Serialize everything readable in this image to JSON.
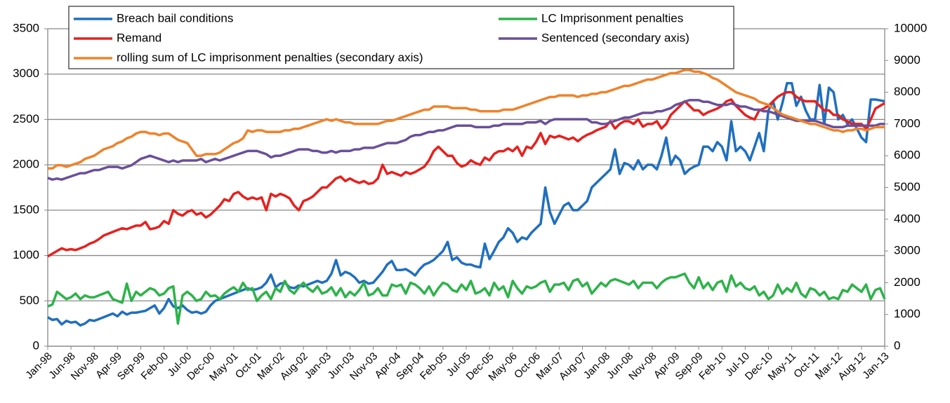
{
  "chart_data": {
    "type": "line",
    "categories": [
      "Jan-98",
      null,
      null,
      null,
      null,
      "Jun-98",
      null,
      null,
      null,
      null,
      "Nov-98",
      null,
      null,
      null,
      null,
      "Apr-99",
      null,
      null,
      null,
      null,
      "Sep-99",
      null,
      null,
      null,
      null,
      "Feb-00",
      null,
      null,
      null,
      null,
      "Jul-00",
      null,
      null,
      null,
      null,
      "Dec-00",
      null,
      null,
      null,
      null,
      "May-01",
      null,
      null,
      null,
      null,
      "Oct-01",
      null,
      null,
      null,
      null,
      "Mar-02",
      null,
      null,
      null,
      null,
      "Aug-02",
      null,
      null,
      null,
      null,
      "Jan-03",
      null,
      null,
      null,
      null,
      "Jun-03",
      null,
      null,
      null,
      null,
      "Nov-03",
      null,
      null,
      null,
      null,
      "Apr-04",
      null,
      null,
      null,
      null,
      "Sep-04",
      null,
      null,
      null,
      null,
      "Feb-05",
      null,
      null,
      null,
      null,
      "Jul-05",
      null,
      null,
      null,
      null,
      "Dec-05",
      null,
      null,
      null,
      null,
      "May-06",
      null,
      null,
      null,
      null,
      "Oct-06",
      null,
      null,
      null,
      null,
      "Mar-07",
      null,
      null,
      null,
      null,
      "Aug-07",
      null,
      null,
      null,
      null,
      "Jan-08",
      null,
      null,
      null,
      null,
      "Jun-08",
      null,
      null,
      null,
      null,
      "Nov-08",
      null,
      null,
      null,
      null,
      "Apr-09",
      null,
      null,
      null,
      null,
      "Sep-09",
      null,
      null,
      null,
      null,
      "Feb-10",
      null,
      null,
      null,
      null,
      "Jul-10",
      null,
      null,
      null,
      null,
      "Dec-10",
      null,
      null,
      null,
      null,
      "May-11",
      null,
      null,
      null,
      null,
      "Oct-11",
      null,
      null,
      null,
      null,
      "Mar-12",
      null,
      null,
      null,
      null,
      "Aug-12",
      null,
      null,
      null,
      null,
      "Jan-13"
    ],
    "series": [
      {
        "name": "Breach bail conditions",
        "color": "#1f6fc0",
        "values": [
          320,
          290,
          300,
          240,
          280,
          260,
          270,
          230,
          250,
          290,
          280,
          300,
          320,
          340,
          360,
          330,
          380,
          350,
          370,
          370,
          380,
          390,
          420,
          450,
          360,
          420,
          520,
          440,
          420,
          450,
          400,
          370,
          380,
          360,
          380,
          450,
          500,
          520,
          540,
          560,
          580,
          600,
          620,
          640,
          620,
          630,
          650,
          700,
          790,
          650,
          690,
          700,
          650,
          640,
          670,
          660,
          680,
          700,
          720,
          700,
          720,
          800,
          950,
          780,
          820,
          800,
          760,
          700,
          720,
          690,
          700,
          760,
          820,
          900,
          940,
          840,
          840,
          850,
          820,
          780,
          850,
          900,
          920,
          950,
          1000,
          1050,
          1150,
          950,
          980,
          920,
          900,
          900,
          880,
          870,
          1130,
          960,
          1050,
          1150,
          1200,
          1300,
          1250,
          1150,
          1200,
          1180,
          1250,
          1300,
          1350,
          1750,
          1480,
          1350,
          1450,
          1550,
          1580,
          1500,
          1500,
          1550,
          1600,
          1750,
          1800,
          1850,
          1900,
          1950,
          2170,
          1900,
          2020,
          2000,
          1950,
          2050,
          1950,
          2000,
          2000,
          1950,
          2100,
          2300,
          2000,
          2100,
          2050,
          1900,
          1950,
          1980,
          2000,
          2200,
          2200,
          2150,
          2250,
          2200,
          2050,
          2480,
          2150,
          2200,
          2150,
          2050,
          2200,
          2350,
          2150,
          2600,
          2700,
          2500,
          2680,
          2900,
          2900,
          2650,
          2750,
          2600,
          2500,
          2500,
          2880,
          2450,
          2850,
          2800,
          2500,
          2550,
          2450,
          2500,
          2400,
          2300,
          2250,
          2720,
          2720,
          2710,
          2700
        ]
      },
      {
        "name": "LC Imprisonment penalties",
        "color": "#2db34a",
        "values": [
          440,
          460,
          600,
          560,
          520,
          540,
          580,
          520,
          560,
          540,
          540,
          560,
          580,
          600,
          520,
          500,
          480,
          690,
          500,
          600,
          560,
          600,
          640,
          620,
          560,
          580,
          640,
          660,
          250,
          560,
          600,
          560,
          500,
          520,
          600,
          550,
          560,
          520,
          580,
          620,
          650,
          600,
          700,
          620,
          640,
          500,
          560,
          600,
          520,
          640,
          600,
          720,
          620,
          580,
          650,
          700,
          640,
          600,
          660,
          580,
          600,
          650,
          560,
          640,
          540,
          600,
          560,
          620,
          700,
          560,
          580,
          640,
          560,
          560,
          680,
          660,
          680,
          580,
          700,
          680,
          640,
          580,
          660,
          560,
          640,
          700,
          680,
          620,
          600,
          680,
          620,
          720,
          580,
          600,
          640,
          560,
          700,
          620,
          660,
          540,
          720,
          640,
          580,
          660,
          640,
          660,
          700,
          720,
          600,
          680,
          680,
          700,
          620,
          720,
          740,
          660,
          700,
          580,
          640,
          700,
          660,
          720,
          740,
          720,
          700,
          680,
          720,
          640,
          700,
          700,
          700,
          640,
          700,
          740,
          760,
          760,
          780,
          800,
          700,
          640,
          760,
          640,
          700,
          620,
          700,
          720,
          600,
          780,
          660,
          700,
          640,
          620,
          660,
          560,
          600,
          520,
          560,
          680,
          580,
          640,
          600,
          700,
          580,
          540,
          640,
          620,
          560,
          600,
          520,
          540,
          520,
          620,
          600,
          680,
          640,
          600,
          680,
          520,
          620,
          640,
          520
        ]
      },
      {
        "name": "Remand",
        "color": "#e8201e",
        "values": [
          990,
          1020,
          1050,
          1080,
          1060,
          1070,
          1060,
          1080,
          1100,
          1130,
          1150,
          1180,
          1220,
          1240,
          1260,
          1280,
          1300,
          1290,
          1310,
          1330,
          1330,
          1370,
          1290,
          1300,
          1320,
          1380,
          1350,
          1500,
          1460,
          1440,
          1480,
          1500,
          1450,
          1470,
          1420,
          1450,
          1500,
          1550,
          1620,
          1600,
          1680,
          1700,
          1650,
          1620,
          1640,
          1620,
          1640,
          1500,
          1680,
          1650,
          1680,
          1660,
          1630,
          1550,
          1500,
          1600,
          1620,
          1650,
          1700,
          1750,
          1750,
          1800,
          1850,
          1870,
          1820,
          1850,
          1820,
          1800,
          1820,
          1790,
          1800,
          1850,
          2000,
          1900,
          1920,
          1900,
          1880,
          1920,
          1900,
          1920,
          1950,
          1980,
          2050,
          2150,
          2200,
          2150,
          2100,
          2100,
          2020,
          1980,
          2000,
          2050,
          2020,
          2000,
          2080,
          2050,
          2120,
          2150,
          2150,
          2180,
          2150,
          2200,
          2100,
          2200,
          2180,
          2250,
          2350,
          2230,
          2320,
          2300,
          2320,
          2300,
          2280,
          2300,
          2260,
          2300,
          2330,
          2350,
          2380,
          2400,
          2420,
          2480,
          2400,
          2450,
          2480,
          2480,
          2450,
          2500,
          2420,
          2450,
          2450,
          2480,
          2400,
          2450,
          2550,
          2600,
          2650,
          2700,
          2650,
          2600,
          2600,
          2550,
          2580,
          2600,
          2620,
          2650,
          2700,
          2720,
          2650,
          2600,
          2550,
          2520,
          2500,
          2600,
          2620,
          2650,
          2700,
          2750,
          2780,
          2800,
          2800,
          2750,
          2720,
          2700,
          2700,
          2700,
          2650,
          2600,
          2600,
          2550,
          2550,
          2500,
          2480,
          2450,
          2450,
          2450,
          2400,
          2500,
          2620,
          2650,
          2680
        ]
      },
      {
        "name": "Sentenced (secondary axis)",
        "color": "#6a4f9a",
        "axis": "y2",
        "values": [
          5300,
          5250,
          5280,
          5250,
          5300,
          5350,
          5400,
          5450,
          5450,
          5500,
          5550,
          5550,
          5600,
          5650,
          5650,
          5650,
          5600,
          5650,
          5700,
          5800,
          5900,
          5950,
          6000,
          5950,
          5900,
          5850,
          5800,
          5850,
          5800,
          5850,
          5850,
          5850,
          5850,
          5900,
          5800,
          5850,
          5900,
          5850,
          5900,
          5950,
          6000,
          6050,
          6100,
          6150,
          6150,
          6150,
          6100,
          6050,
          5950,
          6000,
          6000,
          6050,
          6100,
          6150,
          6200,
          6200,
          6200,
          6150,
          6150,
          6100,
          6100,
          6150,
          6100,
          6150,
          6150,
          6150,
          6200,
          6200,
          6250,
          6250,
          6250,
          6300,
          6350,
          6400,
          6400,
          6400,
          6450,
          6500,
          6600,
          6650,
          6650,
          6700,
          6750,
          6750,
          6800,
          6800,
          6850,
          6900,
          6950,
          6950,
          6950,
          6950,
          6900,
          6900,
          6900,
          6900,
          6950,
          6950,
          7000,
          7000,
          7000,
          7000,
          7000,
          7050,
          7050,
          7050,
          7100,
          7000,
          7100,
          7150,
          7150,
          7150,
          7150,
          7150,
          7150,
          7150,
          7150,
          7050,
          7050,
          7000,
          7000,
          7050,
          7100,
          7150,
          7200,
          7200,
          7250,
          7300,
          7350,
          7350,
          7350,
          7400,
          7400,
          7450,
          7500,
          7600,
          7650,
          7700,
          7750,
          7750,
          7750,
          7700,
          7700,
          7650,
          7600,
          7600,
          7600,
          7650,
          7600,
          7550,
          7550,
          7500,
          7450,
          7450,
          7400,
          7400,
          7350,
          7300,
          7250,
          7200,
          7150,
          7100,
          7100,
          7100,
          7100,
          7100,
          7050,
          7000,
          6950,
          6900,
          6900,
          6900,
          6950,
          6950,
          6950,
          6950,
          6950,
          6950,
          6950,
          7000,
          7000
        ]
      },
      {
        "name": "rolling sum of LC imprisonment penalties (secondary axis)",
        "color": "#f0822a",
        "axis": "y2",
        "values": [
          5600,
          5600,
          5700,
          5700,
          5650,
          5700,
          5750,
          5800,
          5900,
          5950,
          6000,
          6100,
          6200,
          6250,
          6300,
          6400,
          6450,
          6550,
          6600,
          6700,
          6750,
          6750,
          6700,
          6700,
          6650,
          6700,
          6700,
          6600,
          6500,
          6450,
          6400,
          6200,
          6000,
          6000,
          6050,
          6050,
          6050,
          6100,
          6200,
          6300,
          6400,
          6450,
          6550,
          6800,
          6750,
          6800,
          6800,
          6750,
          6750,
          6750,
          6750,
          6800,
          6800,
          6850,
          6850,
          6900,
          6950,
          7000,
          7050,
          7100,
          7150,
          7100,
          7150,
          7100,
          7050,
          7050,
          7000,
          7000,
          7000,
          7000,
          7000,
          7000,
          7050,
          7100,
          7100,
          7150,
          7200,
          7250,
          7300,
          7350,
          7400,
          7450,
          7450,
          7550,
          7550,
          7550,
          7550,
          7500,
          7500,
          7500,
          7500,
          7450,
          7450,
          7400,
          7400,
          7400,
          7400,
          7400,
          7450,
          7450,
          7450,
          7500,
          7550,
          7600,
          7650,
          7700,
          7750,
          7800,
          7850,
          7850,
          7900,
          7900,
          7900,
          7900,
          7850,
          7900,
          7900,
          7950,
          7950,
          8000,
          8000,
          8050,
          8100,
          8150,
          8200,
          8200,
          8250,
          8300,
          8350,
          8400,
          8400,
          8450,
          8500,
          8550,
          8600,
          8600,
          8650,
          8700,
          8700,
          8650,
          8650,
          8600,
          8550,
          8450,
          8400,
          8300,
          8200,
          8100,
          8000,
          7950,
          7900,
          7850,
          7800,
          7700,
          7650,
          7600,
          7500,
          7400,
          7300,
          7250,
          7200,
          7150,
          7100,
          7050,
          7000,
          7000,
          6950,
          6900,
          6850,
          6800,
          6800,
          6750,
          6800,
          6800,
          6850,
          6850,
          6800,
          6850,
          6900,
          6900,
          6900
        ]
      }
    ],
    "ylim": [
      0,
      3500
    ],
    "yticks": [
      0,
      500,
      1000,
      1500,
      2000,
      2500,
      3000,
      3500
    ],
    "y2lim": [
      0,
      10000
    ],
    "y2ticks": [
      0,
      1000,
      2000,
      3000,
      4000,
      5000,
      6000,
      7000,
      8000,
      9000,
      10000
    ],
    "grid": true
  }
}
